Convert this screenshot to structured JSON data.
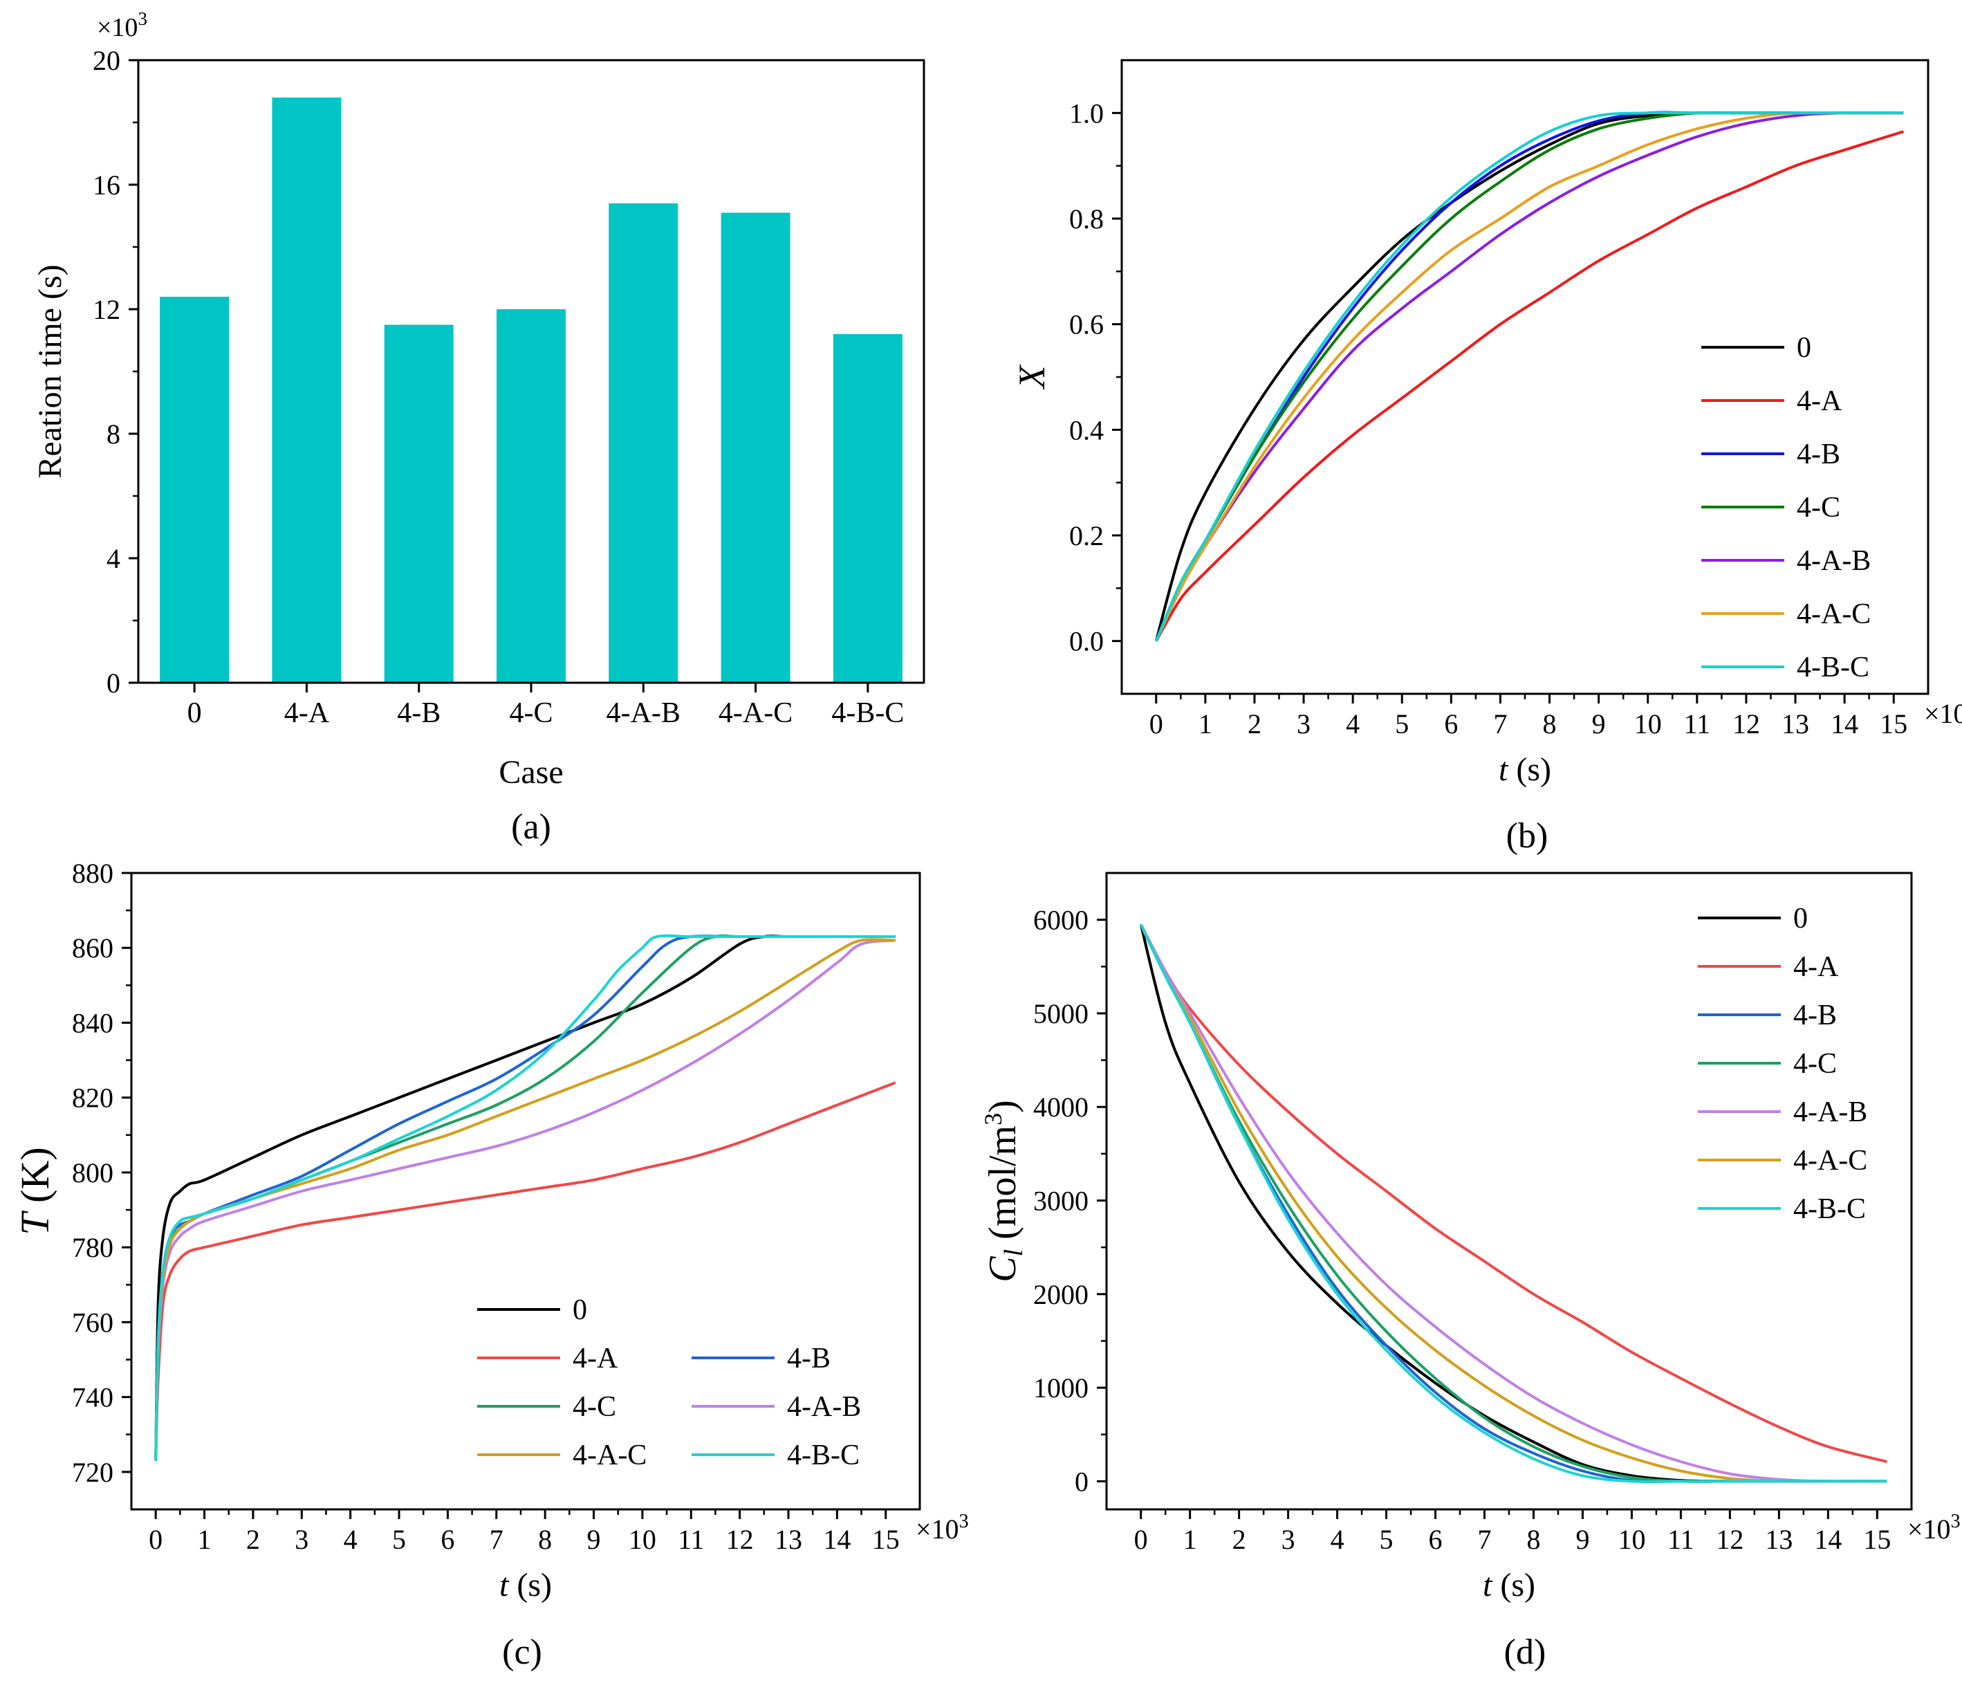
{
  "chart_data": [
    {
      "type": "bar",
      "panel_label": "(a)",
      "xlabel": "Case",
      "ylabel": "Reation time (s)",
      "y_multiplier": "×10",
      "y_multiplier_exp": "3",
      "ylim": [
        0,
        20
      ],
      "yticks": [
        "0",
        "4",
        "8",
        "12",
        "16",
        "20"
      ],
      "ytick_values": [
        0,
        4,
        8,
        12,
        16,
        20
      ],
      "categories": [
        "0",
        "4-A",
        "4-B",
        "4-C",
        "4-A-B",
        "4-A-C",
        "4-B-C"
      ],
      "values": [
        12.4,
        18.8,
        11.5,
        12.0,
        15.4,
        15.1,
        11.2
      ],
      "bar_color": "#00c5c5"
    },
    {
      "type": "line",
      "panel_label": "(b)",
      "xlabel_var": "t",
      "xlabel_unit": " (s)",
      "ylabel_var": "X",
      "x_multiplier": "×10",
      "x_multiplier_exp": "3",
      "xlim": [
        -0.7,
        15.7
      ],
      "ylim": [
        -0.1,
        1.1
      ],
      "xticks": [
        "0",
        "1",
        "2",
        "3",
        "4",
        "5",
        "6",
        "7",
        "8",
        "9",
        "10",
        "11",
        "12",
        "13",
        "14",
        "15"
      ],
      "yticks": [
        "0.0",
        "0.2",
        "0.4",
        "0.6",
        "0.8",
        "1.0"
      ],
      "ytick_values": [
        0,
        0.2,
        0.4,
        0.6,
        0.8,
        1.0
      ],
      "legend_position": "center-right",
      "series": [
        {
          "name": "0",
          "color": "#000000",
          "x": [
            0,
            0.5,
            1,
            2,
            3,
            4,
            5,
            6,
            7,
            8,
            9,
            10,
            11,
            12,
            13,
            14,
            15.2
          ],
          "y": [
            0,
            0.17,
            0.28,
            0.44,
            0.57,
            0.67,
            0.76,
            0.83,
            0.89,
            0.94,
            0.98,
            0.995,
            1,
            1,
            1,
            1,
            1
          ]
        },
        {
          "name": "4-A",
          "color": "#ee1c1c",
          "x": [
            0,
            0.5,
            1,
            2,
            3,
            4,
            5,
            6,
            7,
            8,
            9,
            10,
            11,
            12,
            13,
            14,
            15.2
          ],
          "y": [
            0,
            0.08,
            0.13,
            0.22,
            0.31,
            0.39,
            0.46,
            0.53,
            0.6,
            0.66,
            0.72,
            0.77,
            0.82,
            0.86,
            0.9,
            0.93,
            0.965
          ]
        },
        {
          "name": "4-B",
          "color": "#1414e6",
          "x": [
            0,
            0.5,
            1,
            2,
            3,
            4,
            5,
            6,
            7,
            8,
            9,
            10,
            11,
            12,
            13,
            14,
            15.2
          ],
          "y": [
            0,
            0.11,
            0.19,
            0.35,
            0.5,
            0.63,
            0.74,
            0.83,
            0.9,
            0.95,
            0.985,
            1,
            1,
            1,
            1,
            1,
            1
          ]
        },
        {
          "name": "4-C",
          "color": "#0b7d0b",
          "x": [
            0,
            0.5,
            1,
            2,
            3,
            4,
            5,
            6,
            7,
            8,
            9,
            10,
            11,
            12,
            13,
            14,
            15.2
          ],
          "y": [
            0,
            0.11,
            0.19,
            0.35,
            0.49,
            0.61,
            0.71,
            0.8,
            0.87,
            0.93,
            0.97,
            0.99,
            1,
            1,
            1,
            1,
            1
          ]
        },
        {
          "name": "4-A-B",
          "color": "#8c1ee0",
          "x": [
            0,
            0.5,
            1,
            2,
            3,
            4,
            5,
            6,
            7,
            8,
            9,
            10,
            11,
            12,
            13,
            14,
            15.2
          ],
          "y": [
            0,
            0.1,
            0.18,
            0.32,
            0.44,
            0.55,
            0.63,
            0.7,
            0.77,
            0.83,
            0.88,
            0.92,
            0.955,
            0.98,
            0.995,
            1,
            1
          ]
        },
        {
          "name": "4-A-C",
          "color": "#e6a21e",
          "x": [
            0,
            0.5,
            1,
            2,
            3,
            4,
            5,
            6,
            7,
            8,
            9,
            10,
            11,
            12,
            13,
            14,
            15.2
          ],
          "y": [
            0,
            0.1,
            0.18,
            0.33,
            0.46,
            0.57,
            0.66,
            0.74,
            0.8,
            0.86,
            0.9,
            0.94,
            0.97,
            0.99,
            1,
            1,
            1
          ]
        },
        {
          "name": "4-B-C",
          "color": "#17d0d0",
          "x": [
            0,
            0.5,
            1,
            2,
            3,
            4,
            5,
            6,
            7,
            8,
            9,
            10,
            11,
            12,
            13,
            14,
            15.2
          ],
          "y": [
            0,
            0.11,
            0.19,
            0.36,
            0.51,
            0.64,
            0.75,
            0.84,
            0.91,
            0.965,
            0.995,
            1,
            1,
            1,
            1,
            1,
            1
          ]
        }
      ]
    },
    {
      "type": "line",
      "panel_label": "(c)",
      "xlabel_var": "t",
      "xlabel_unit": " (s)",
      "ylabel_var": "T",
      "ylabel_unit": " (K)",
      "x_multiplier": "×10",
      "x_multiplier_exp": "3",
      "xlim": [
        -0.5,
        15.7
      ],
      "ylim": [
        710,
        880
      ],
      "xticks": [
        "0",
        "1",
        "2",
        "3",
        "4",
        "5",
        "6",
        "7",
        "8",
        "9",
        "10",
        "11",
        "12",
        "13",
        "14",
        "15"
      ],
      "yticks": [
        "720",
        "740",
        "760",
        "780",
        "800",
        "820",
        "840",
        "860",
        "880"
      ],
      "ytick_values": [
        720,
        740,
        760,
        780,
        800,
        820,
        840,
        860,
        880
      ],
      "legend_position": "bottom-right",
      "series": [
        {
          "name": "0",
          "color": "#000000",
          "x": [
            0,
            0.05,
            0.15,
            0.3,
            0.5,
            0.7,
            1,
            2,
            3,
            4,
            5,
            6,
            7,
            8,
            9,
            10,
            11,
            12,
            12.5,
            13,
            14,
            15.2
          ],
          "y": [
            723,
            765,
            783,
            792,
            795,
            797,
            798,
            804,
            810,
            815,
            820,
            825,
            830,
            835,
            840,
            845,
            852,
            861,
            863,
            863,
            863,
            863
          ]
        },
        {
          "name": "4-A",
          "color": "#f04848",
          "x": [
            0,
            0.05,
            0.15,
            0.3,
            0.5,
            0.7,
            1,
            2,
            3,
            4,
            5,
            6,
            7,
            8,
            9,
            10,
            11,
            12,
            13,
            14,
            15.2
          ],
          "y": [
            723,
            745,
            765,
            773,
            777,
            779,
            780,
            783,
            786,
            788,
            790,
            792,
            794,
            796,
            798,
            801,
            804,
            808,
            813,
            818,
            824
          ]
        },
        {
          "name": "4-B",
          "color": "#1f64d2",
          "x": [
            0,
            0.05,
            0.15,
            0.3,
            0.5,
            0.7,
            1,
            2,
            3,
            4,
            5,
            6,
            7,
            8,
            9,
            10,
            10.5,
            11,
            12,
            13,
            14,
            15.2
          ],
          "y": [
            723,
            755,
            774,
            783,
            786,
            787,
            789,
            794,
            799,
            806,
            813,
            819,
            825,
            833,
            842,
            855,
            861,
            863,
            863,
            863,
            863,
            863
          ]
        },
        {
          "name": "4-C",
          "color": "#1ea064",
          "x": [
            0,
            0.05,
            0.15,
            0.3,
            0.5,
            0.7,
            1,
            2,
            3,
            4,
            5,
            6,
            7,
            8,
            9,
            10,
            11,
            11.5,
            12,
            13,
            14,
            15.2
          ],
          "y": [
            723,
            755,
            773,
            782,
            785,
            787,
            789,
            793,
            798,
            803,
            808,
            813,
            818,
            825,
            835,
            848,
            860,
            863,
            863,
            863,
            863,
            863
          ]
        },
        {
          "name": "4-A-B",
          "color": "#c080e6",
          "x": [
            0,
            0.05,
            0.15,
            0.3,
            0.5,
            0.7,
            1,
            2,
            3,
            4,
            5,
            6,
            7,
            8,
            9,
            10,
            11,
            12,
            13,
            14,
            14.5,
            15.2
          ],
          "y": [
            723,
            752,
            770,
            779,
            783,
            785,
            787,
            791,
            795,
            798,
            801,
            804,
            807,
            811,
            816,
            822,
            829,
            837,
            846,
            856,
            861,
            862
          ]
        },
        {
          "name": "4-A-C",
          "color": "#d2a01e",
          "x": [
            0,
            0.05,
            0.15,
            0.3,
            0.5,
            0.7,
            1,
            2,
            3,
            4,
            5,
            6,
            7,
            8,
            9,
            10,
            11,
            12,
            13,
            14,
            14.5,
            15.2
          ],
          "y": [
            723,
            754,
            772,
            781,
            785,
            787,
            789,
            793,
            797,
            801,
            806,
            810,
            815,
            820,
            825,
            830,
            836,
            843,
            851,
            859,
            862,
            862
          ]
        },
        {
          "name": "4-B-C",
          "color": "#20d2d2",
          "x": [
            0,
            0.05,
            0.15,
            0.3,
            0.5,
            0.7,
            1,
            2,
            3,
            4,
            5,
            6,
            7,
            8,
            9,
            9.5,
            10,
            10.3,
            11,
            12,
            13,
            14,
            15.2
          ],
          "y": [
            723,
            755,
            774,
            783,
            787,
            788,
            789,
            793,
            798,
            803,
            809,
            815,
            822,
            832,
            846,
            854,
            860,
            863,
            863,
            863,
            863,
            863,
            863
          ]
        }
      ]
    },
    {
      "type": "line",
      "panel_label": "(d)",
      "xlabel_var": "t",
      "xlabel_unit": " (s)",
      "ylabel_var": "C",
      "ylabel_sub": "l",
      "ylabel_unit_pre": " (mol/m",
      "ylabel_unit_exp": "3",
      "ylabel_unit_post": ")",
      "x_multiplier": "×10",
      "x_multiplier_exp": "3",
      "xlim": [
        -0.7,
        15.7
      ],
      "ylim": [
        -300,
        6500
      ],
      "xticks": [
        "0",
        "1",
        "2",
        "3",
        "4",
        "5",
        "6",
        "7",
        "8",
        "9",
        "10",
        "11",
        "12",
        "13",
        "14",
        "15"
      ],
      "yticks": [
        "0",
        "1000",
        "2000",
        "3000",
        "4000",
        "5000",
        "6000"
      ],
      "ytick_values": [
        0,
        1000,
        2000,
        3000,
        4000,
        5000,
        6000
      ],
      "legend_position": "top-right",
      "series": [
        {
          "name": "0",
          "color": "#000000",
          "x": [
            0,
            0.5,
            1,
            2,
            3,
            4,
            5,
            6,
            7,
            8,
            9,
            10,
            11,
            12,
            13,
            14,
            15.2
          ],
          "y": [
            5950,
            4900,
            4250,
            3200,
            2450,
            1900,
            1450,
            1050,
            700,
            420,
            180,
            60,
            10,
            0,
            0,
            0,
            0
          ]
        },
        {
          "name": "4-A",
          "color": "#f04848",
          "x": [
            0,
            0.5,
            1,
            2,
            3,
            4,
            5,
            6,
            7,
            8,
            9,
            10,
            11,
            12,
            13,
            14,
            15.2
          ],
          "y": [
            5950,
            5450,
            5050,
            4450,
            3950,
            3500,
            3100,
            2700,
            2350,
            2000,
            1700,
            1380,
            1100,
            830,
            580,
            370,
            210
          ]
        },
        {
          "name": "4-B",
          "color": "#1f64d2",
          "x": [
            0,
            0.5,
            1,
            2,
            3,
            4,
            5,
            6,
            7,
            8,
            9,
            10,
            11,
            12,
            13,
            14,
            15.2
          ],
          "y": [
            5950,
            5400,
            4900,
            3800,
            2850,
            2050,
            1450,
            950,
            560,
            300,
            110,
            10,
            0,
            0,
            0,
            0,
            0
          ]
        },
        {
          "name": "4-C",
          "color": "#1ea064",
          "x": [
            0,
            0.5,
            1,
            2,
            3,
            4,
            5,
            6,
            7,
            8,
            9,
            10,
            11,
            12,
            13,
            14,
            15.2
          ],
          "y": [
            5950,
            5400,
            4900,
            3850,
            2950,
            2200,
            1600,
            1100,
            680,
            370,
            160,
            40,
            0,
            0,
            0,
            0,
            0
          ]
        },
        {
          "name": "4-A-B",
          "color": "#c080e6",
          "x": [
            0,
            0.5,
            1,
            2,
            3,
            4,
            5,
            6,
            7,
            8,
            9,
            10,
            11,
            12,
            13,
            14,
            15.2
          ],
          "y": [
            5950,
            5450,
            5000,
            4100,
            3300,
            2650,
            2100,
            1650,
            1250,
            900,
            620,
            390,
            210,
            80,
            20,
            0,
            0
          ]
        },
        {
          "name": "4-A-C",
          "color": "#d2a01e",
          "x": [
            0,
            0.5,
            1,
            2,
            3,
            4,
            5,
            6,
            7,
            8,
            9,
            10,
            11,
            12,
            13,
            14,
            15.2
          ],
          "y": [
            5950,
            5400,
            4950,
            3950,
            3100,
            2400,
            1850,
            1400,
            1020,
            700,
            440,
            250,
            110,
            30,
            0,
            0,
            0
          ]
        },
        {
          "name": "4-B-C",
          "color": "#20d2d2",
          "x": [
            0,
            0.5,
            1,
            2,
            3,
            4,
            5,
            6,
            7,
            8,
            9,
            10,
            11,
            12,
            13,
            14,
            15.2
          ],
          "y": [
            5950,
            5400,
            4900,
            3800,
            2800,
            2000,
            1400,
            900,
            520,
            240,
            60,
            0,
            0,
            0,
            0,
            0,
            0
          ]
        }
      ]
    }
  ]
}
